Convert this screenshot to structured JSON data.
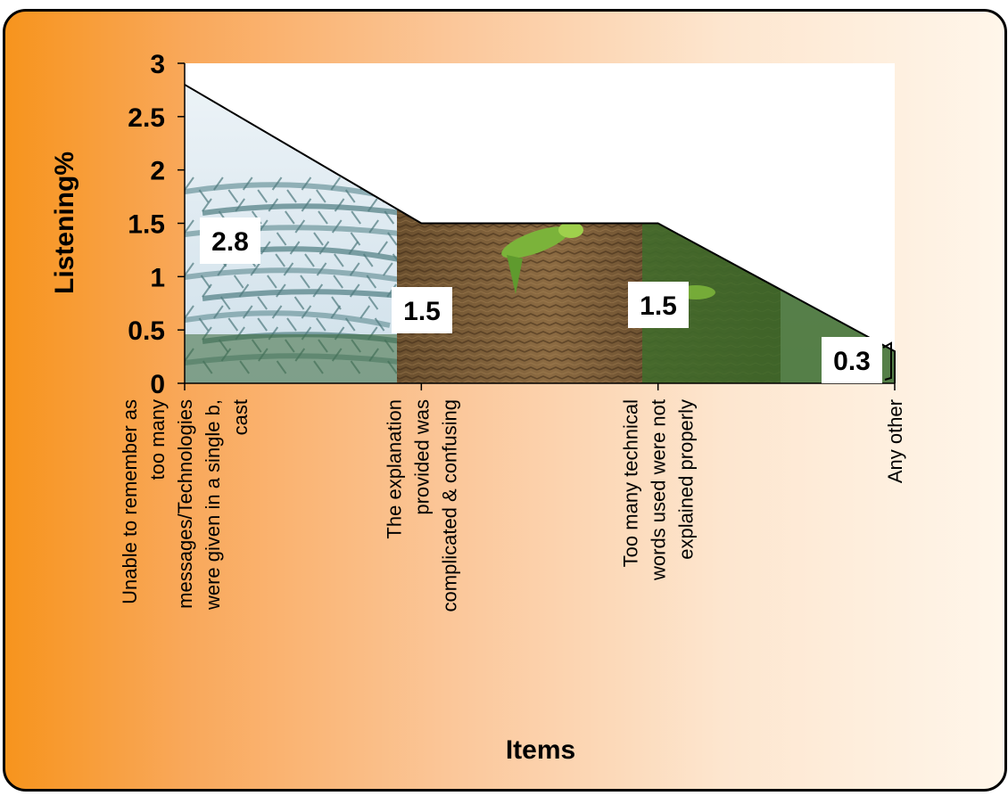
{
  "chart_data": {
    "type": "area",
    "categories": [
      "Unable to remember as too many messages/Technologies were given  in a single b, cast",
      "The explanation provided was complicated & confusing",
      "Too many technical words used were not explained properly",
      "Any other"
    ],
    "category_lines": [
      [
        "Unable to remember as",
        "too many",
        "messages/Technologies",
        "were given  in a single b,",
        "cast"
      ],
      [
        "The explanation",
        "provided was",
        "complicated & confusing"
      ],
      [
        "Too many technical",
        "words used were not",
        "explained properly"
      ],
      [
        "Any other"
      ]
    ],
    "values": [
      2.8,
      1.5,
      1.5,
      0.3
    ],
    "data_labels": [
      "2.8",
      "1.5",
      "1.5",
      "0.3"
    ],
    "xlabel": "Items",
    "ylabel": "Listening%",
    "ylim": [
      0,
      3
    ],
    "yticks": [
      "0",
      "0.5",
      "1",
      "1.5",
      "2",
      "2.5",
      "3"
    ],
    "grid": false,
    "legend": "none",
    "colors": {
      "frame_border": "#000000",
      "background_left": "#f7941d",
      "background_right": "#fff6ea",
      "plot_area": "#ffffff",
      "area_fill_textured": "#6b5a3a",
      "area_outline": "#000000"
    },
    "area_fill_style": "photo-texture-palm-tree-and-parrot"
  }
}
